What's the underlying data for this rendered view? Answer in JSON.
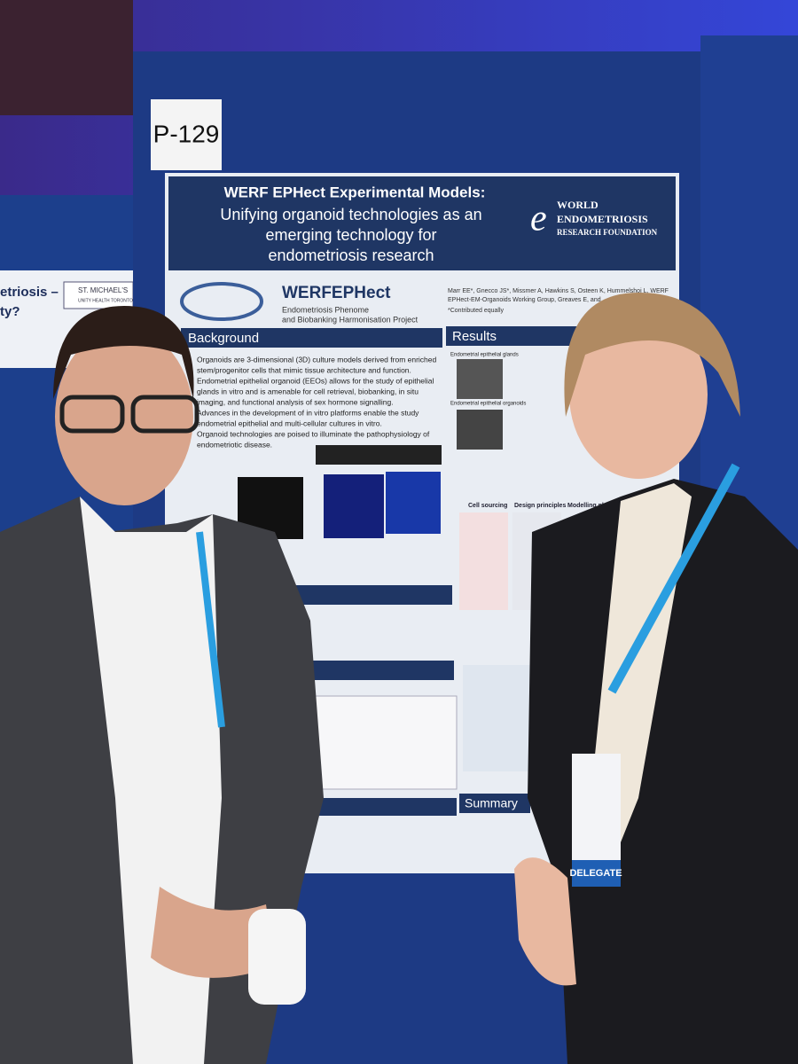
{
  "sign": "P-129",
  "poster": {
    "title": "WERF EPHect Experimental Models:",
    "subtitle_lines": [
      "Unifying organoid technologies as an",
      "emerging technology for",
      "endometriosis research"
    ],
    "foundation": {
      "world": "WORLD",
      "endometriosis": "ENDOMETRIOSIS",
      "research": "RESEARCH FOUNDATION"
    },
    "project": {
      "name": "WERFEPHect",
      "lines": [
        "Endometriosis Phenome",
        "and Biobanking Harmonisation Project"
      ]
    },
    "authors": [
      "Marr EE*, Gnecco JS*, Missmer A, Hawkins S, Osteen K, Hummelshoj L, WERF",
      "EPHect-EM-Organoids Working Group, Greaves E, and"
    ],
    "note": "*Contributed equally",
    "sections": {
      "background": "Background",
      "results": "Results",
      "summary": "Summary"
    },
    "background_lines": [
      "Organoids are 3-dimensional (3D) culture models derived from enriched",
      "stem/progenitor cells that mimic tissue architecture and function.",
      "Endometrial epithelial organoid (EEOs) allows for the study of epithelial",
      "glands in vitro and is amenable for cell retrieval, biobanking, in situ",
      "imaging, and functional analysis of sex hormone signalling.",
      "Advances in the development of in vitro platforms enable the study",
      "endometrial epithelial and multi-cellular cultures in vitro.",
      "Organoid technologies are poised to illuminate the pathophysiology of",
      "endometriotic disease."
    ],
    "results_labels": [
      "Endometrial epithelial glands",
      "Endometrial epithelial organoids"
    ],
    "column_heads": [
      "Cell sourcing",
      "Design principles",
      "Modelling platforms"
    ]
  },
  "neighbor_poster": {
    "lines": [
      "etriosis –",
      "ty?"
    ],
    "logo": [
      "ST. MICHAEL'S",
      "UNITY HEALTH TORONTO"
    ]
  },
  "badge": "DELEGATE"
}
